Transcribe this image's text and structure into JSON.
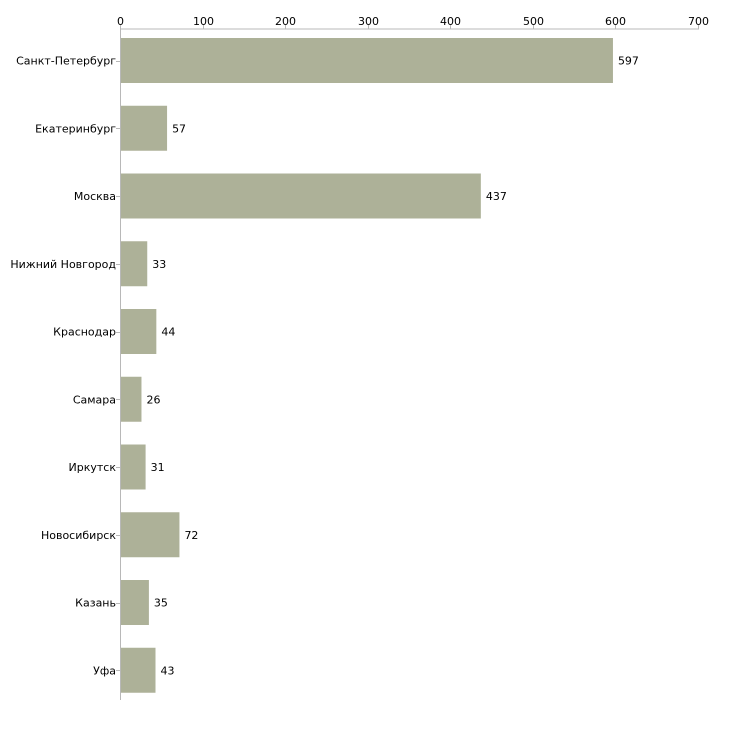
{
  "chart_data": {
    "type": "bar",
    "orientation": "horizontal",
    "title": "",
    "xlabel": "",
    "ylabel": "",
    "xlim": [
      0,
      700
    ],
    "xticks": [
      0,
      100,
      200,
      300,
      400,
      500,
      600,
      700
    ],
    "grid": false,
    "legend": "none",
    "bar_color": "#adb198",
    "axis_color": "#b8b8b8",
    "categories": [
      "Санкт-Петербург",
      "Екатеринбург",
      "Москва",
      "Нижний Новгород",
      "Краснодар",
      "Самара",
      "Иркутск",
      "Новосибирск",
      "Казань",
      "Уфа"
    ],
    "values": [
      597,
      57,
      437,
      33,
      44,
      26,
      31,
      72,
      35,
      43
    ]
  }
}
